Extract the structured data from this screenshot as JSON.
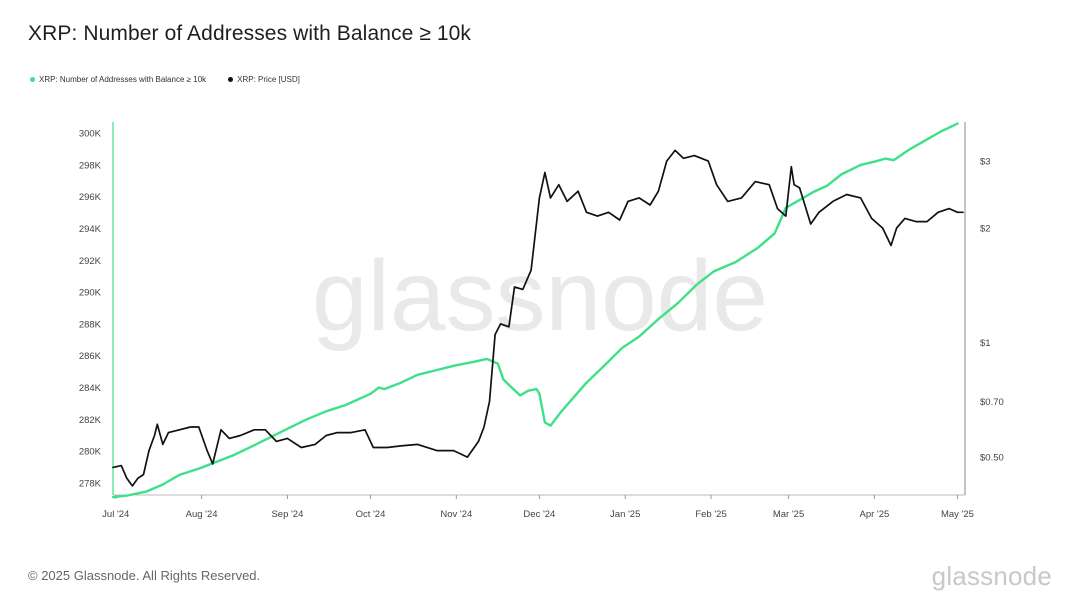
{
  "header": {
    "title": "XRP: Number of Addresses with Balance ≥ 10k"
  },
  "footer": {
    "copyright": "© 2025 Glassnode. All Rights Reserved.",
    "logo": "glassnode"
  },
  "colors": {
    "addresses": "#3ee08a",
    "price": "#111111",
    "left_axis_line": "#3ee08a",
    "watermark": "#e9e9e9"
  },
  "chart_data": {
    "type": "line",
    "title": "XRP: Number of Addresses with Balance ≥ 10k",
    "watermark": "glassnode",
    "grid": false,
    "legend_position": "top-left",
    "x_ticks": [
      {
        "date": "2024-07-01",
        "label": "Jul '24"
      },
      {
        "date": "2024-08-01",
        "label": "Aug '24"
      },
      {
        "date": "2024-09-01",
        "label": "Sep '24"
      },
      {
        "date": "2024-10-01",
        "label": "Oct '24"
      },
      {
        "date": "2024-11-01",
        "label": "Nov '24"
      },
      {
        "date": "2024-12-01",
        "label": "Dec '24"
      },
      {
        "date": "2025-01-01",
        "label": "Jan '25"
      },
      {
        "date": "2025-02-01",
        "label": "Feb '25"
      },
      {
        "date": "2025-03-01",
        "label": "Mar '25"
      },
      {
        "date": "2025-04-01",
        "label": "Apr '25"
      },
      {
        "date": "2025-05-01",
        "label": "May '25"
      }
    ],
    "xlim": [
      "2024-06-30",
      "2025-05-03"
    ],
    "left_axis": {
      "ylim": [
        277300,
        300700
      ],
      "ticks": [
        {
          "value": 278000,
          "label": "278K"
        },
        {
          "value": 280000,
          "label": "280K"
        },
        {
          "value": 282000,
          "label": "282K"
        },
        {
          "value": 284000,
          "label": "284K"
        },
        {
          "value": 286000,
          "label": "286K"
        },
        {
          "value": 288000,
          "label": "288K"
        },
        {
          "value": 290000,
          "label": "290K"
        },
        {
          "value": 292000,
          "label": "292K"
        },
        {
          "value": 294000,
          "label": "294K"
        },
        {
          "value": 296000,
          "label": "296K"
        },
        {
          "value": 298000,
          "label": "298K"
        },
        {
          "value": 300000,
          "label": "300K"
        }
      ]
    },
    "right_axis": {
      "scale": "log",
      "ylim": [
        0.4,
        3.8
      ],
      "ticks": [
        {
          "value": 0.5,
          "label": "$0.50"
        },
        {
          "value": 0.7,
          "label": "$0.70"
        },
        {
          "value": 1,
          "label": "$1"
        },
        {
          "value": 2,
          "label": "$2"
        },
        {
          "value": 3,
          "label": "$3"
        }
      ]
    },
    "series": [
      {
        "name": "XRP: Number of Addresses with Balance ≥ 10k",
        "axis": "left",
        "color": "#3ee08a",
        "points": [
          [
            "2024-06-30",
            277100
          ],
          [
            "2024-07-05",
            277200
          ],
          [
            "2024-07-12",
            277450
          ],
          [
            "2024-07-18",
            277900
          ],
          [
            "2024-07-24",
            278500
          ],
          [
            "2024-07-31",
            278900
          ],
          [
            "2024-08-06",
            279300
          ],
          [
            "2024-08-12",
            279700
          ],
          [
            "2024-08-18",
            280200
          ],
          [
            "2024-08-25",
            280800
          ],
          [
            "2024-09-01",
            281400
          ],
          [
            "2024-09-08",
            282000
          ],
          [
            "2024-09-15",
            282500
          ],
          [
            "2024-09-22",
            282900
          ],
          [
            "2024-10-01",
            283600
          ],
          [
            "2024-10-04",
            284000
          ],
          [
            "2024-10-06",
            283900
          ],
          [
            "2024-10-12",
            284300
          ],
          [
            "2024-10-18",
            284800
          ],
          [
            "2024-10-25",
            285100
          ],
          [
            "2024-11-01",
            285400
          ],
          [
            "2024-11-07",
            285600
          ],
          [
            "2024-11-12",
            285800
          ],
          [
            "2024-11-16",
            285500
          ],
          [
            "2024-11-18",
            284500
          ],
          [
            "2024-11-21",
            284000
          ],
          [
            "2024-11-24",
            283500
          ],
          [
            "2024-11-27",
            283800
          ],
          [
            "2024-11-30",
            283900
          ],
          [
            "2024-12-01",
            283600
          ],
          [
            "2024-12-03",
            281800
          ],
          [
            "2024-12-05",
            281600
          ],
          [
            "2024-12-09",
            282500
          ],
          [
            "2024-12-13",
            283300
          ],
          [
            "2024-12-18",
            284300
          ],
          [
            "2024-12-24",
            285300
          ],
          [
            "2024-12-31",
            286500
          ],
          [
            "2025-01-06",
            287200
          ],
          [
            "2025-01-13",
            288300
          ],
          [
            "2025-01-20",
            289300
          ],
          [
            "2025-01-27",
            290500
          ],
          [
            "2025-02-02",
            291300
          ],
          [
            "2025-02-10",
            291900
          ],
          [
            "2025-02-18",
            292800
          ],
          [
            "2025-02-24",
            293700
          ],
          [
            "2025-02-28",
            295300
          ],
          [
            "2025-03-05",
            295800
          ],
          [
            "2025-03-10",
            296300
          ],
          [
            "2025-03-15",
            296700
          ],
          [
            "2025-03-20",
            297400
          ],
          [
            "2025-03-27",
            298000
          ],
          [
            "2025-04-01",
            298200
          ],
          [
            "2025-04-05",
            298400
          ],
          [
            "2025-04-08",
            298300
          ],
          [
            "2025-04-13",
            298900
          ],
          [
            "2025-04-19",
            299500
          ],
          [
            "2025-04-25",
            300100
          ],
          [
            "2025-05-01",
            300600
          ]
        ]
      },
      {
        "name": "XRP: Price [USD]",
        "axis": "right",
        "color": "#111111",
        "points": [
          [
            "2024-06-30",
            0.47
          ],
          [
            "2024-07-03",
            0.475
          ],
          [
            "2024-07-05",
            0.44
          ],
          [
            "2024-07-07",
            0.42
          ],
          [
            "2024-07-09",
            0.44
          ],
          [
            "2024-07-11",
            0.45
          ],
          [
            "2024-07-13",
            0.52
          ],
          [
            "2024-07-15",
            0.57
          ],
          [
            "2024-07-16",
            0.61
          ],
          [
            "2024-07-18",
            0.54
          ],
          [
            "2024-07-20",
            0.58
          ],
          [
            "2024-07-24",
            0.59
          ],
          [
            "2024-07-28",
            0.6
          ],
          [
            "2024-07-31",
            0.6
          ],
          [
            "2024-08-03",
            0.52
          ],
          [
            "2024-08-05",
            0.48
          ],
          [
            "2024-08-08",
            0.59
          ],
          [
            "2024-08-11",
            0.56
          ],
          [
            "2024-08-15",
            0.57
          ],
          [
            "2024-08-20",
            0.59
          ],
          [
            "2024-08-24",
            0.59
          ],
          [
            "2024-08-28",
            0.55
          ],
          [
            "2024-09-01",
            0.56
          ],
          [
            "2024-09-06",
            0.53
          ],
          [
            "2024-09-11",
            0.54
          ],
          [
            "2024-09-15",
            0.57
          ],
          [
            "2024-09-19",
            0.58
          ],
          [
            "2024-09-24",
            0.58
          ],
          [
            "2024-09-29",
            0.59
          ],
          [
            "2024-10-02",
            0.53
          ],
          [
            "2024-10-07",
            0.53
          ],
          [
            "2024-10-12",
            0.535
          ],
          [
            "2024-10-18",
            0.54
          ],
          [
            "2024-10-25",
            0.52
          ],
          [
            "2024-10-31",
            0.52
          ],
          [
            "2024-11-05",
            0.5
          ],
          [
            "2024-11-09",
            0.55
          ],
          [
            "2024-11-11",
            0.6
          ],
          [
            "2024-11-13",
            0.7
          ],
          [
            "2024-11-15",
            1.05
          ],
          [
            "2024-11-17",
            1.12
          ],
          [
            "2024-11-20",
            1.1
          ],
          [
            "2024-11-22",
            1.4
          ],
          [
            "2024-11-25",
            1.38
          ],
          [
            "2024-11-28",
            1.55
          ],
          [
            "2024-12-01",
            2.4
          ],
          [
            "2024-12-03",
            2.8
          ],
          [
            "2024-12-05",
            2.4
          ],
          [
            "2024-12-08",
            2.6
          ],
          [
            "2024-12-11",
            2.35
          ],
          [
            "2024-12-15",
            2.5
          ],
          [
            "2024-12-18",
            2.2
          ],
          [
            "2024-12-22",
            2.15
          ],
          [
            "2024-12-26",
            2.2
          ],
          [
            "2024-12-30",
            2.1
          ],
          [
            "2025-01-02",
            2.35
          ],
          [
            "2025-01-06",
            2.4
          ],
          [
            "2025-01-10",
            2.3
          ],
          [
            "2025-01-13",
            2.5
          ],
          [
            "2025-01-16",
            3.0
          ],
          [
            "2025-01-19",
            3.2
          ],
          [
            "2025-01-22",
            3.05
          ],
          [
            "2025-01-26",
            3.1
          ],
          [
            "2025-01-31",
            3.0
          ],
          [
            "2025-02-03",
            2.6
          ],
          [
            "2025-02-07",
            2.35
          ],
          [
            "2025-02-12",
            2.4
          ],
          [
            "2025-02-17",
            2.65
          ],
          [
            "2025-02-22",
            2.6
          ],
          [
            "2025-02-25",
            2.25
          ],
          [
            "2025-02-28",
            2.15
          ],
          [
            "2025-03-02",
            2.9
          ],
          [
            "2025-03-03",
            2.6
          ],
          [
            "2025-03-05",
            2.55
          ],
          [
            "2025-03-09",
            2.05
          ],
          [
            "2025-03-12",
            2.2
          ],
          [
            "2025-03-17",
            2.35
          ],
          [
            "2025-03-22",
            2.45
          ],
          [
            "2025-03-27",
            2.4
          ],
          [
            "2025-03-31",
            2.12
          ],
          [
            "2025-04-04",
            2.0
          ],
          [
            "2025-04-07",
            1.8
          ],
          [
            "2025-04-09",
            2.0
          ],
          [
            "2025-04-12",
            2.12
          ],
          [
            "2025-04-16",
            2.08
          ],
          [
            "2025-04-20",
            2.08
          ],
          [
            "2025-04-24",
            2.2
          ],
          [
            "2025-04-28",
            2.25
          ],
          [
            "2025-05-01",
            2.2
          ],
          [
            "2025-05-03",
            2.2
          ]
        ]
      }
    ]
  }
}
